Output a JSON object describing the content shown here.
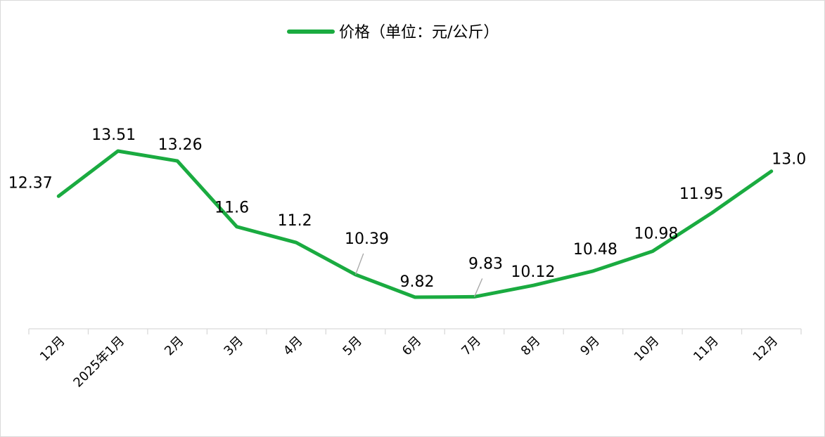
{
  "chart_data": {
    "type": "line",
    "categories": [
      "12月",
      "2025年1月",
      "2月",
      "3月",
      "4月",
      "5月",
      "6月",
      "7月",
      "8月",
      "9月",
      "10月",
      "11月",
      "12月"
    ],
    "series": [
      {
        "name": "价格（单位：元/公斤）",
        "values": [
          12.37,
          13.51,
          13.26,
          11.6,
          11.2,
          10.39,
          9.82,
          9.83,
          10.12,
          10.48,
          10.98,
          11.95,
          13.0
        ],
        "labels": [
          "12.37",
          "13.51",
          "13.26",
          "11.6",
          "11.2",
          "10.39",
          "9.82",
          "9.83",
          "10.12",
          "10.48",
          "10.98",
          "11.95",
          "13.0"
        ]
      }
    ],
    "title": "",
    "xlabel": "",
    "ylabel": "",
    "ylim": [
      7.35,
      14.4
    ],
    "grid": false,
    "legend": "top-center",
    "y_axis_visible": false,
    "data_labels": true,
    "colors": {
      "line": "#1aab40",
      "axis": "#d9d9d9",
      "leader": "#a6a6a6",
      "text": "#000000"
    }
  }
}
